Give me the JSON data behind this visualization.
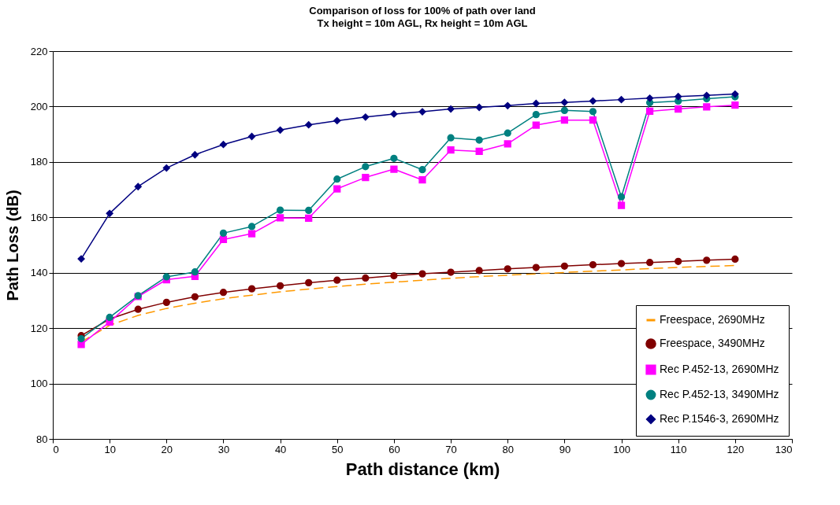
{
  "chart_data": {
    "type": "line",
    "title": "Comparison of loss for 100% of path over land",
    "subtitle": "Tx height = 10m AGL, Rx height = 10m AGL",
    "xlabel": "Path distance (km)",
    "ylabel": "Path Loss (dB)",
    "x": [
      5,
      10,
      15,
      20,
      25,
      30,
      35,
      40,
      45,
      50,
      55,
      60,
      65,
      70,
      75,
      80,
      85,
      90,
      95,
      100,
      105,
      110,
      115,
      120
    ],
    "xlim": [
      0,
      130
    ],
    "xticks": [
      0,
      10,
      20,
      30,
      40,
      50,
      60,
      70,
      80,
      90,
      100,
      110,
      120,
      130
    ],
    "ylim": [
      80,
      220
    ],
    "yticks": [
      80,
      100,
      120,
      140,
      160,
      180,
      200,
      220
    ],
    "grid": "y",
    "legend": "bottom right",
    "series": [
      {
        "name": "Freespace, 2690MHz",
        "color": "#ff9900",
        "line_style": "dashed",
        "marker": "none",
        "values": [
          115.0,
          121.0,
          124.6,
          127.1,
          129.0,
          130.6,
          131.9,
          133.1,
          134.1,
          135.0,
          135.9,
          136.6,
          137.3,
          138.0,
          138.6,
          139.1,
          139.6,
          140.1,
          140.6,
          141.0,
          141.5,
          141.9,
          142.3,
          142.6
        ]
      },
      {
        "name": "Freespace, 3490MHz",
        "color": "#800000",
        "line_style": "solid",
        "marker": "circle",
        "values": [
          117.3,
          123.3,
          126.8,
          129.3,
          131.3,
          132.9,
          134.2,
          135.3,
          136.4,
          137.3,
          138.1,
          138.9,
          139.6,
          140.2,
          140.8,
          141.4,
          141.9,
          142.4,
          142.9,
          143.3,
          143.7,
          144.1,
          144.5,
          144.9
        ]
      },
      {
        "name": "Rec P.452-13, 2690MHz",
        "color": "#ff00ff",
        "line_style": "solid",
        "marker": "square",
        "values": [
          114.1,
          122.2,
          131.4,
          137.5,
          138.7,
          152.0,
          154.1,
          159.8,
          159.7,
          170.3,
          174.4,
          177.4,
          173.5,
          184.3,
          183.8,
          186.5,
          193.3,
          195.1,
          195.1,
          164.3,
          198.3,
          199.1,
          199.9,
          200.5
        ]
      },
      {
        "name": "Rec P.452-13, 3490MHz",
        "color": "#008080",
        "line_style": "solid",
        "marker": "circle",
        "values": [
          116.2,
          123.9,
          131.7,
          138.5,
          140.3,
          154.3,
          156.7,
          162.6,
          162.5,
          173.8,
          178.3,
          181.3,
          177.2,
          188.7,
          187.9,
          190.4,
          197.1,
          198.6,
          198.2,
          167.4,
          201.4,
          202.0,
          202.8,
          203.5
        ]
      },
      {
        "name": "Rec P.1546-3, 2690MHz",
        "color": "#000080",
        "line_style": "solid",
        "marker": "diamond",
        "values": [
          145.0,
          161.4,
          171.1,
          177.8,
          182.6,
          186.3,
          189.2,
          191.5,
          193.4,
          194.9,
          196.2,
          197.3,
          198.1,
          199.1,
          199.7,
          200.3,
          201.1,
          201.5,
          202.0,
          202.5,
          203.0,
          203.6,
          204.0,
          204.5
        ]
      }
    ]
  }
}
